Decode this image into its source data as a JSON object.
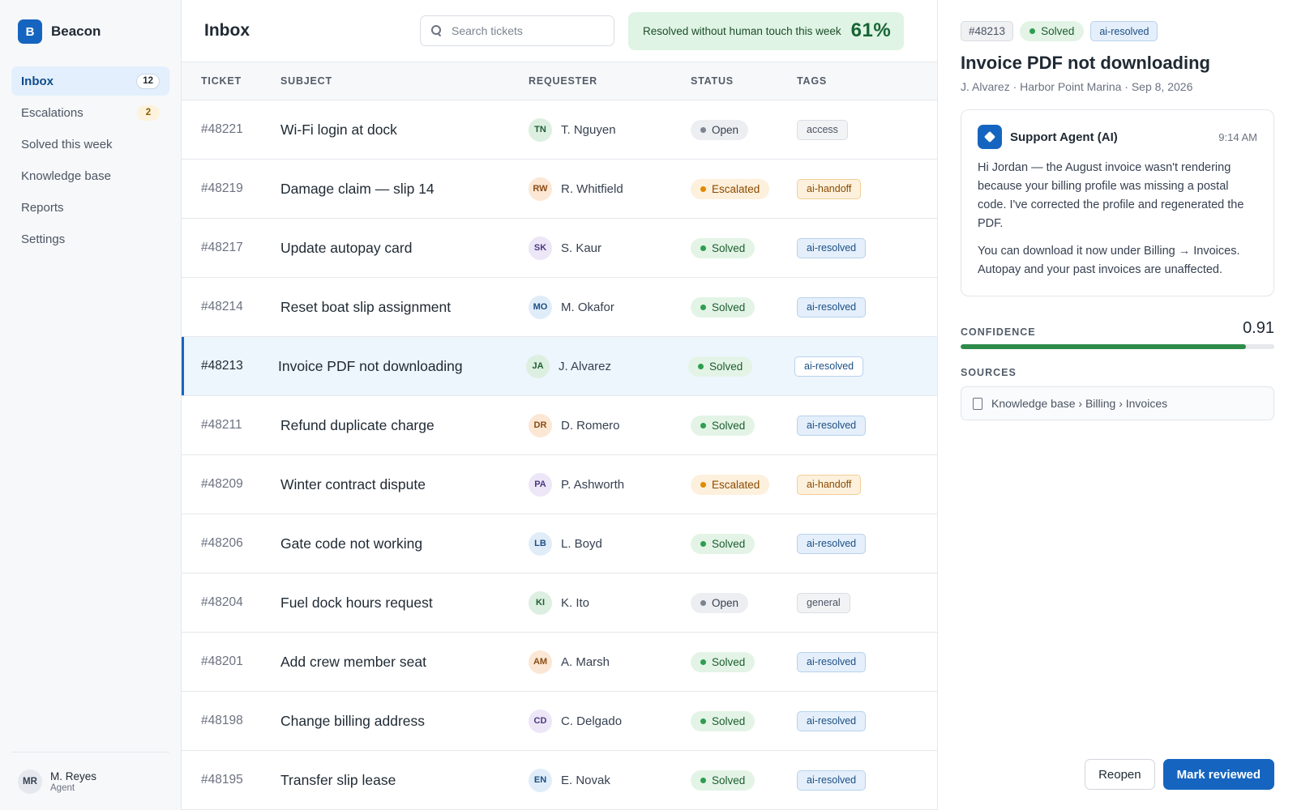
{
  "brand": {
    "logo_letter": "B",
    "name": "Beacon",
    "color": "#1565c0"
  },
  "sidebar": {
    "items": [
      {
        "label": "Inbox",
        "badge": "12",
        "active": true
      },
      {
        "label": "Escalations",
        "badge": "2",
        "active": false
      },
      {
        "label": "Solved this week",
        "badge": "",
        "active": false
      },
      {
        "label": "Knowledge base",
        "badge": "",
        "active": false
      },
      {
        "label": "Reports",
        "badge": "",
        "active": false
      },
      {
        "label": "Settings",
        "badge": "",
        "active": false
      }
    ],
    "user": {
      "initials": "MR",
      "name": "M. Reyes",
      "role": "Agent"
    }
  },
  "header": {
    "title": "Inbox",
    "search_placeholder": "Search tickets",
    "search_value": "",
    "metric_label": "Resolved without human touch this week",
    "metric_value": "61%"
  },
  "table": {
    "columns": [
      "TICKET",
      "SUBJECT",
      "REQUESTER",
      "STATUS",
      "TAGS"
    ],
    "rows": [
      {
        "ticket": "#48221",
        "subject": "Wi-Fi login at dock",
        "initials": "TN",
        "requester": "T. Nguyen",
        "avatar_color": "green",
        "status": "Open",
        "tag": "access",
        "tag_kind": "general"
      },
      {
        "ticket": "#48219",
        "subject": "Damage claim — slip 14",
        "initials": "RW",
        "requester": "R. Whitfield",
        "avatar_color": "amber",
        "status": "Escalated",
        "tag": "ai-handoff",
        "tag_kind": "handoff"
      },
      {
        "ticket": "#48217",
        "subject": "Update autopay card",
        "initials": "SK",
        "requester": "S. Kaur",
        "avatar_color": "purple",
        "status": "Solved",
        "tag": "ai-resolved",
        "tag_kind": "resolved"
      },
      {
        "ticket": "#48214",
        "subject": "Reset boat slip assignment",
        "initials": "MO",
        "requester": "M. Okafor",
        "avatar_color": "blue",
        "status": "Solved",
        "tag": "ai-resolved",
        "tag_kind": "resolved"
      },
      {
        "ticket": "#48213",
        "subject": "Invoice PDF not downloading",
        "initials": "JA",
        "requester": "J. Alvarez",
        "avatar_color": "green",
        "status": "Solved",
        "tag": "ai-resolved",
        "tag_kind": "resolved",
        "selected": true
      },
      {
        "ticket": "#48211",
        "subject": "Refund duplicate charge",
        "initials": "DR",
        "requester": "D. Romero",
        "avatar_color": "amber",
        "status": "Solved",
        "tag": "ai-resolved",
        "tag_kind": "resolved"
      },
      {
        "ticket": "#48209",
        "subject": "Winter contract dispute",
        "initials": "PA",
        "requester": "P. Ashworth",
        "avatar_color": "purple",
        "status": "Escalated",
        "tag": "ai-handoff",
        "tag_kind": "handoff"
      },
      {
        "ticket": "#48206",
        "subject": "Gate code not working",
        "initials": "LB",
        "requester": "L. Boyd",
        "avatar_color": "blue",
        "status": "Solved",
        "tag": "ai-resolved",
        "tag_kind": "resolved"
      },
      {
        "ticket": "#48204",
        "subject": "Fuel dock hours request",
        "initials": "KI",
        "requester": "K. Ito",
        "avatar_color": "green",
        "status": "Open",
        "tag": "general",
        "tag_kind": "general"
      },
      {
        "ticket": "#48201",
        "subject": "Add crew member seat",
        "initials": "AM",
        "requester": "A. Marsh",
        "avatar_color": "amber",
        "status": "Solved",
        "tag": "ai-resolved",
        "tag_kind": "resolved"
      },
      {
        "ticket": "#48198",
        "subject": "Change billing address",
        "initials": "CD",
        "requester": "C. Delgado",
        "avatar_color": "purple",
        "status": "Solved",
        "tag": "ai-resolved",
        "tag_kind": "resolved"
      },
      {
        "ticket": "#48195",
        "subject": "Transfer slip lease",
        "initials": "EN",
        "requester": "E. Novak",
        "avatar_color": "blue",
        "status": "Solved",
        "tag": "ai-resolved",
        "tag_kind": "resolved"
      }
    ]
  },
  "detail": {
    "ticket_id": "#48213",
    "status": "Solved",
    "tag": "ai-resolved",
    "title": "Invoice PDF not downloading",
    "meta": "J. Alvarez · Harbor Point Marina · Sep 8, 2026",
    "message": {
      "author": "Support Agent (AI)",
      "time": "9:14 AM",
      "paragraph_1": "Hi Jordan — the August invoice wasn't rendering because your billing profile was missing a postal code. I've corrected the profile and regenerated the PDF.",
      "paragraph_2": "You can download it now under Billing → Invoices. Autopay and your past invoices are unaffected."
    },
    "confidence_label": "CONFIDENCE",
    "confidence_value": "0.91",
    "confidence_fraction": 0.91,
    "sources_label": "SOURCES",
    "source": "Knowledge base › Billing › Invoices",
    "reopen_label": "Reopen",
    "mark_reviewed_label": "Mark reviewed"
  },
  "icons": {
    "search": "search-icon",
    "agent": "ai-agent-icon",
    "document": "document-icon"
  }
}
